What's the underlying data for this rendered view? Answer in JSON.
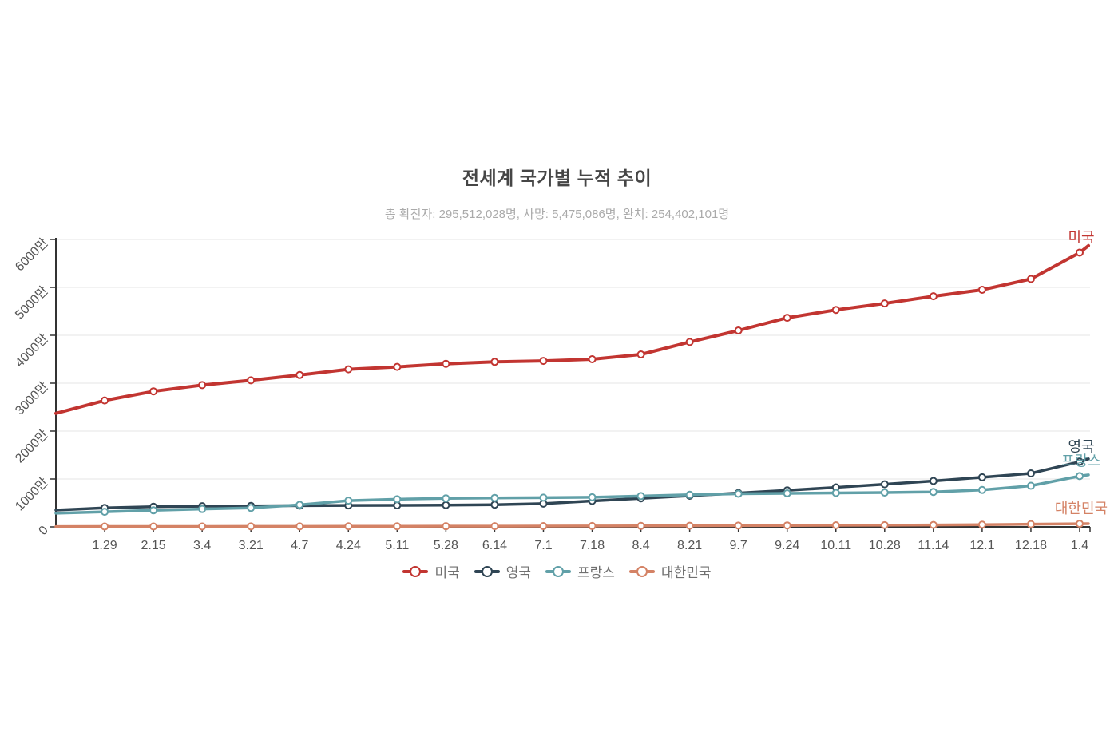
{
  "title": "전세계 국가별 누적 추이",
  "subtitle": "총 확진자: 295,512,028명, 사망: 5,475,086명, 완치: 254,402,101명",
  "colors": {
    "background": "#ffffff",
    "axis": "#333333",
    "grid": "#e6e6e6",
    "axis_label": "#555555",
    "title": "#464646",
    "subtitle": "#aaaaaa",
    "legend_text": "#707070"
  },
  "chart_data": {
    "type": "line",
    "title": "전세계 국가별 누적 추이",
    "subtitle": "총 확진자: 295,512,028명, 사망: 5,475,086명, 완치: 254,402,101명",
    "unit": "만 (ten-thousands of cumulative confirmed cases)",
    "categories": [
      "",
      "1.29",
      "2.15",
      "3.4",
      "3.21",
      "4.7",
      "4.24",
      "5.11",
      "5.28",
      "6.14",
      "7.1",
      "7.18",
      "8.4",
      "8.21",
      "9.7",
      "9.24",
      "10.11",
      "10.28",
      "11.14",
      "12.1",
      "12.18",
      "1.4"
    ],
    "y_axis": {
      "tick_labels": [
        "0",
        "1000만",
        "2000만",
        "3000만",
        "4000만",
        "5000만",
        "6000만"
      ],
      "tick_values": [
        0,
        1000,
        2000,
        3000,
        4000,
        5000,
        6000
      ],
      "min": 0,
      "max": 6000,
      "grid": true,
      "label_rotation_deg": -45
    },
    "x_axis": {
      "note": "first data point sits on the y-axis with no label; small unlabeled tip point past 1.4 at axis end"
    },
    "legend_position": "bottom-center",
    "series": [
      {
        "name": "미국",
        "slug": "usa",
        "color": "#c23531",
        "line_width": 4,
        "values": [
          2370,
          2640,
          2830,
          2960,
          3060,
          3170,
          3290,
          3340,
          3405,
          3445,
          3465,
          3500,
          3600,
          3860,
          4100,
          4365,
          4530,
          4665,
          4815,
          4950,
          5175,
          5725
        ],
        "tip_value": 5870,
        "end_label": "미국"
      },
      {
        "name": "영국",
        "slug": "uk",
        "color": "#2f4554",
        "line_width": 3.5,
        "values": [
          350,
          395,
          420,
          432,
          438,
          443,
          447,
          450,
          455,
          463,
          485,
          542,
          596,
          650,
          706,
          762,
          824,
          890,
          958,
          1035,
          1117,
          1360
        ],
        "tip_value": 1420,
        "end_label": "영국"
      },
      {
        "name": "프랑스",
        "slug": "france",
        "color": "#61a0a8",
        "line_width": 3.5,
        "values": [
          285,
          315,
          345,
          372,
          395,
          460,
          548,
          578,
          595,
          605,
          610,
          618,
          643,
          670,
          691,
          701,
          709,
          716,
          730,
          770,
          858,
          1060
        ],
        "tip_value": 1085,
        "end_label": "프랑스"
      },
      {
        "name": "대한민국",
        "slug": "korea",
        "color": "#d48265",
        "line_width": 3.5,
        "values": [
          7,
          7.8,
          8.5,
          9.2,
          10,
          10.8,
          11.8,
          12.9,
          13.9,
          14.8,
          15.8,
          17.9,
          20.3,
          23.5,
          26.5,
          29.7,
          33.5,
          36.2,
          40,
          45.8,
          55.6,
          64.6
        ],
        "tip_value": 67,
        "end_label": "대한민국"
      }
    ]
  }
}
